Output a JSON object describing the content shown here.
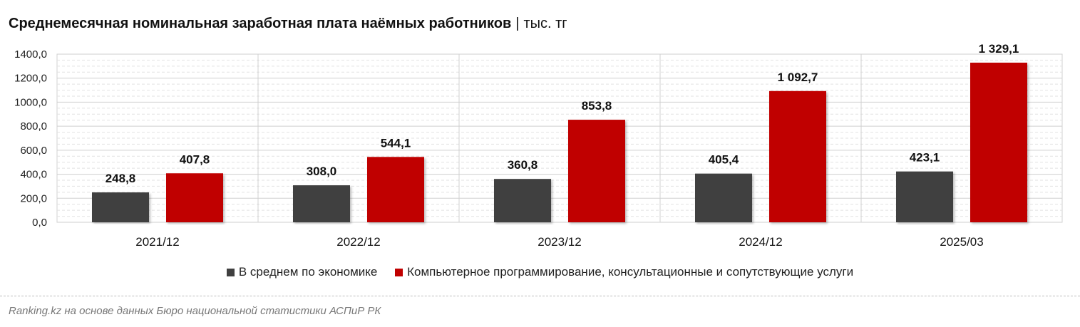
{
  "title": {
    "main": "Среднемесячная номинальная заработная плата наёмных работников",
    "separator": "|",
    "unit": "тыс. тг"
  },
  "colors": {
    "series_1": "#404040",
    "series_2": "#c00000"
  },
  "chart_data": {
    "type": "bar",
    "categories": [
      "2021/12",
      "2022/12",
      "2023/12",
      "2024/12",
      "2025/03"
    ],
    "series": [
      {
        "name": "В среднем по экономике",
        "values": [
          248.8,
          308.0,
          360.8,
          405.4,
          423.1
        ],
        "labels": [
          "248,8",
          "308,0",
          "360,8",
          "405,4",
          "423,1"
        ]
      },
      {
        "name": "Компьютерное программирование, консультационные и сопутствующие услуги",
        "values": [
          407.8,
          544.1,
          853.8,
          1092.7,
          1329.1
        ],
        "labels": [
          "407,8",
          "544,1",
          "853,8",
          "1 092,7",
          "1 329,1"
        ]
      }
    ],
    "ylim": [
      0,
      1400
    ],
    "yticks": [
      0,
      200,
      400,
      600,
      800,
      1000,
      1200,
      1400
    ],
    "ytick_labels": [
      "0,0",
      "200,0",
      "400,0",
      "600,0",
      "800,0",
      "1000,0",
      "1200,0",
      "1400,0"
    ],
    "grid": true,
    "legend_position": "bottom"
  },
  "source": "Ranking.kz на основе данных Бюро национальной статистики АСПиР РК"
}
